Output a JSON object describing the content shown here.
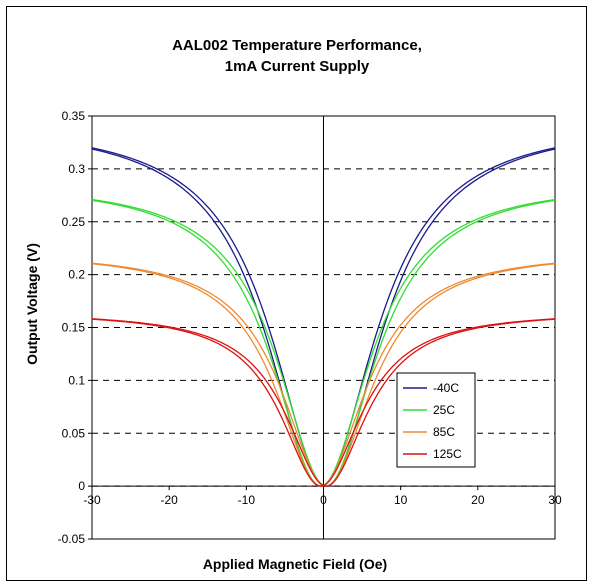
{
  "chart_data": {
    "type": "line",
    "title_lines": [
      "AAL002 Temperature Performance,",
      "1mA Current Supply"
    ],
    "xlabel": "Applied Magnetic Field (Oe)",
    "ylabel": "Output Voltage (V)",
    "xlim": [
      -30,
      30
    ],
    "ylim": [
      -0.05,
      0.35
    ],
    "xticks": [
      -30,
      -20,
      -10,
      0,
      10,
      20,
      30
    ],
    "yticks": [
      -0.05,
      0,
      0.05,
      0.1,
      0.15,
      0.2,
      0.25,
      0.3,
      0.35
    ],
    "ytick_labels": [
      "-0.05",
      "0",
      "0.05",
      "0.1",
      "0.15",
      "0.2",
      "0.25",
      "0.3",
      "0.35"
    ],
    "grid": "horizontal dashed",
    "legend_position": "right-lower",
    "series": [
      {
        "name": "-40C",
        "color": "#1a1a8c",
        "sat": 0.345,
        "a": 8.5
      },
      {
        "name": "25C",
        "color": "#33dd33",
        "sat": 0.288,
        "a": 7.6
      },
      {
        "name": "85C",
        "color": "#f08a30",
        "sat": 0.222,
        "a": 7.0
      },
      {
        "name": "125C",
        "color": "#dd1111",
        "sat": 0.165,
        "a": 6.3
      }
    ]
  }
}
